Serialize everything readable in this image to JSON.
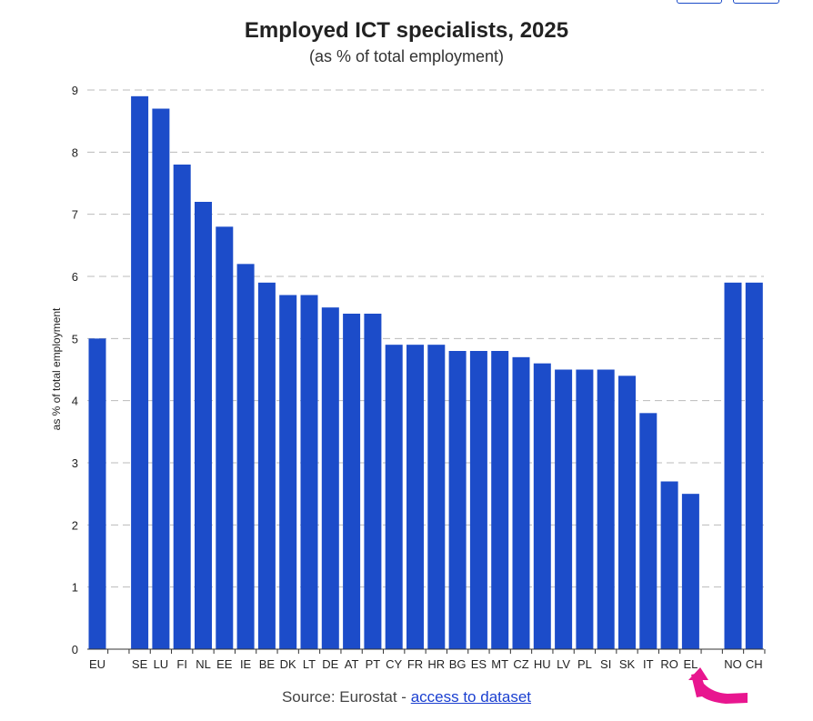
{
  "chart_data": {
    "type": "bar",
    "title": "Employed ICT specialists, 2025",
    "subtitle": "(as % of total employment)",
    "xlabel": "",
    "ylabel": "as % of total employment",
    "ylim": [
      0,
      9
    ],
    "yticks": [
      0,
      1,
      2,
      3,
      4,
      5,
      6,
      7,
      8,
      9
    ],
    "grid": true,
    "bar_color": "#1c4cc9",
    "categories": [
      "EU",
      "",
      "SE",
      "LU",
      "FI",
      "NL",
      "EE",
      "IE",
      "BE",
      "DK",
      "LT",
      "DE",
      "AT",
      "PT",
      "CY",
      "FR",
      "HR",
      "BG",
      "ES",
      "MT",
      "CZ",
      "HU",
      "LV",
      "PL",
      "SI",
      "SK",
      "IT",
      "RO",
      "EL",
      "",
      "NO",
      "CH"
    ],
    "values": [
      5.0,
      null,
      8.9,
      8.7,
      7.8,
      7.2,
      6.8,
      6.2,
      5.9,
      5.7,
      5.7,
      5.5,
      5.4,
      5.4,
      4.9,
      4.9,
      4.9,
      4.8,
      4.8,
      4.8,
      4.7,
      4.6,
      4.5,
      4.5,
      4.5,
      4.4,
      3.8,
      2.7,
      2.5,
      null,
      5.9,
      5.9
    ]
  },
  "footer": {
    "source_prefix": "Source: Eurostat - ",
    "dataset_link": "access to dataset"
  },
  "annotation": {
    "icon": "curved-arrow-icon",
    "color": "#e8168f"
  }
}
